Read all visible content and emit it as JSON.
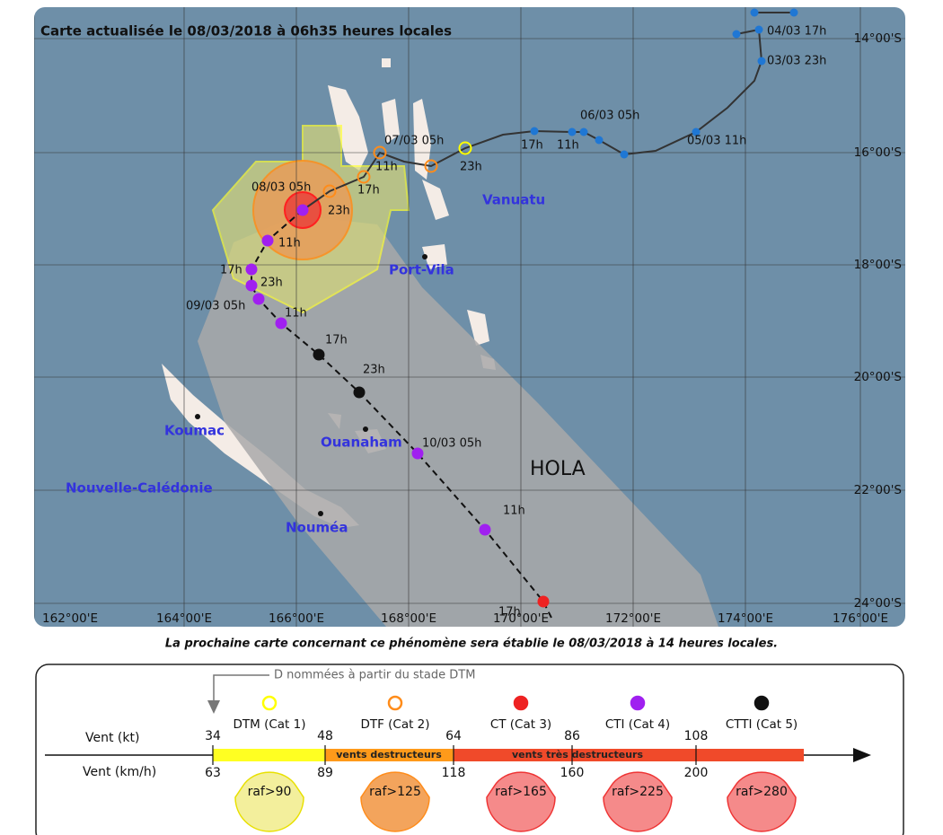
{
  "map": {
    "title": "Carte actualisée le 08/03/2018 à 06h35 heures locales",
    "lat_labels": [
      "14°00'S",
      "16°00'S",
      "18°00'S",
      "20°00'S",
      "22°00'S",
      "24°00'S"
    ],
    "lon_labels": [
      "162°00'E",
      "164°00'E",
      "166°00'E",
      "168°00'E",
      "170°00'E",
      "172°00'E",
      "174°00'E",
      "176°00'E"
    ],
    "places": [
      "Vanuatu",
      "Port-Vila",
      "Koumac",
      "Nouvelle-Calédonie",
      "Ouanaham",
      "Nouméa"
    ],
    "storm_name": "HOLA",
    "track_labels": [
      "04/03 17h",
      "03/03 23h",
      "06/03 05h",
      "05/03 11h",
      "17h",
      "11h",
      "23h",
      "07/03 05h",
      "11h",
      "17h",
      "08/03 05h",
      "23h",
      "11h",
      "17h",
      "23h",
      "09/03 05h",
      "11h",
      "17h",
      "23h",
      "10/03 05h",
      "11h",
      "17h"
    ]
  },
  "footer": "La prochaine carte concernant ce phénomène sera établie le 08/03/2018 à 14 heures locales.",
  "legend": {
    "note": "D nommées à partir du stade DTM",
    "categories": [
      "DTM (Cat 1)",
      "DTF (Cat 2)",
      "CT (Cat 3)",
      "CTI (Cat 4)",
      "CTTI (Cat 5)"
    ],
    "wind_kt_label": "Vent (kt)",
    "wind_kmh_label": "Vent (km/h)",
    "kt": [
      34,
      48,
      64,
      86,
      108
    ],
    "kmh": [
      63,
      89,
      118,
      160,
      200
    ],
    "bands": [
      "vents destructeurs",
      "vents très destructeurs"
    ],
    "gusts": [
      "raf>90",
      "raf>125",
      "raf>165",
      "raf>225",
      "raf>280"
    ]
  }
}
